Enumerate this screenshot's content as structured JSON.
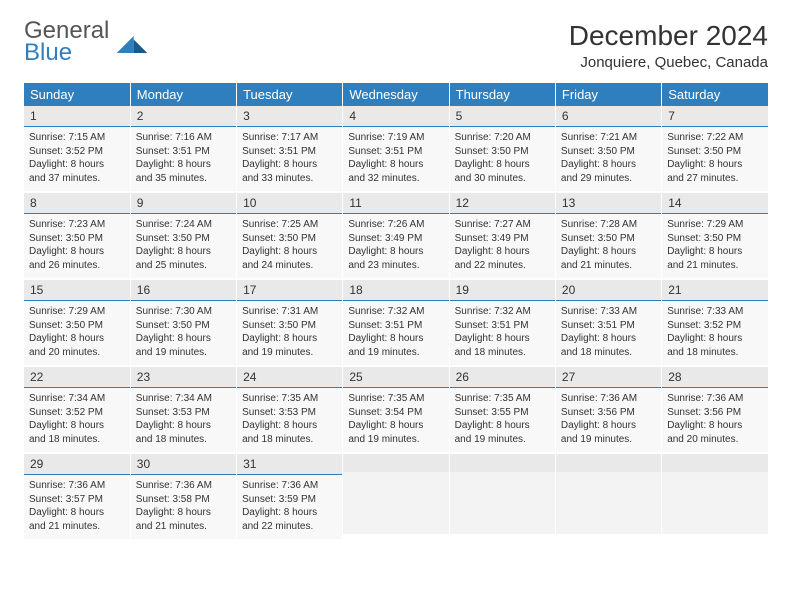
{
  "logo": {
    "text1": "General",
    "text2": "Blue",
    "color1": "#555555",
    "color2": "#2f7fbf"
  },
  "title": "December 2024",
  "location": "Jonquiere, Quebec, Canada",
  "header_bg": "#2f7fbf",
  "header_text": "#ffffff",
  "daynum_bg": "#e9e9e9",
  "body_bg": "#f8f8f8",
  "divider": "#2f7fbf",
  "weekdays": [
    "Sunday",
    "Monday",
    "Tuesday",
    "Wednesday",
    "Thursday",
    "Friday",
    "Saturday"
  ],
  "cells": [
    {
      "n": "1",
      "sr": "Sunrise: 7:15 AM",
      "ss": "Sunset: 3:52 PM",
      "d1": "Daylight: 8 hours",
      "d2": "and 37 minutes."
    },
    {
      "n": "2",
      "sr": "Sunrise: 7:16 AM",
      "ss": "Sunset: 3:51 PM",
      "d1": "Daylight: 8 hours",
      "d2": "and 35 minutes."
    },
    {
      "n": "3",
      "sr": "Sunrise: 7:17 AM",
      "ss": "Sunset: 3:51 PM",
      "d1": "Daylight: 8 hours",
      "d2": "and 33 minutes."
    },
    {
      "n": "4",
      "sr": "Sunrise: 7:19 AM",
      "ss": "Sunset: 3:51 PM",
      "d1": "Daylight: 8 hours",
      "d2": "and 32 minutes."
    },
    {
      "n": "5",
      "sr": "Sunrise: 7:20 AM",
      "ss": "Sunset: 3:50 PM",
      "d1": "Daylight: 8 hours",
      "d2": "and 30 minutes."
    },
    {
      "n": "6",
      "sr": "Sunrise: 7:21 AM",
      "ss": "Sunset: 3:50 PM",
      "d1": "Daylight: 8 hours",
      "d2": "and 29 minutes."
    },
    {
      "n": "7",
      "sr": "Sunrise: 7:22 AM",
      "ss": "Sunset: 3:50 PM",
      "d1": "Daylight: 8 hours",
      "d2": "and 27 minutes."
    },
    {
      "n": "8",
      "sr": "Sunrise: 7:23 AM",
      "ss": "Sunset: 3:50 PM",
      "d1": "Daylight: 8 hours",
      "d2": "and 26 minutes."
    },
    {
      "n": "9",
      "sr": "Sunrise: 7:24 AM",
      "ss": "Sunset: 3:50 PM",
      "d1": "Daylight: 8 hours",
      "d2": "and 25 minutes."
    },
    {
      "n": "10",
      "sr": "Sunrise: 7:25 AM",
      "ss": "Sunset: 3:50 PM",
      "d1": "Daylight: 8 hours",
      "d2": "and 24 minutes."
    },
    {
      "n": "11",
      "sr": "Sunrise: 7:26 AM",
      "ss": "Sunset: 3:49 PM",
      "d1": "Daylight: 8 hours",
      "d2": "and 23 minutes."
    },
    {
      "n": "12",
      "sr": "Sunrise: 7:27 AM",
      "ss": "Sunset: 3:49 PM",
      "d1": "Daylight: 8 hours",
      "d2": "and 22 minutes."
    },
    {
      "n": "13",
      "sr": "Sunrise: 7:28 AM",
      "ss": "Sunset: 3:50 PM",
      "d1": "Daylight: 8 hours",
      "d2": "and 21 minutes."
    },
    {
      "n": "14",
      "sr": "Sunrise: 7:29 AM",
      "ss": "Sunset: 3:50 PM",
      "d1": "Daylight: 8 hours",
      "d2": "and 21 minutes."
    },
    {
      "n": "15",
      "sr": "Sunrise: 7:29 AM",
      "ss": "Sunset: 3:50 PM",
      "d1": "Daylight: 8 hours",
      "d2": "and 20 minutes."
    },
    {
      "n": "16",
      "sr": "Sunrise: 7:30 AM",
      "ss": "Sunset: 3:50 PM",
      "d1": "Daylight: 8 hours",
      "d2": "and 19 minutes."
    },
    {
      "n": "17",
      "sr": "Sunrise: 7:31 AM",
      "ss": "Sunset: 3:50 PM",
      "d1": "Daylight: 8 hours",
      "d2": "and 19 minutes."
    },
    {
      "n": "18",
      "sr": "Sunrise: 7:32 AM",
      "ss": "Sunset: 3:51 PM",
      "d1": "Daylight: 8 hours",
      "d2": "and 19 minutes."
    },
    {
      "n": "19",
      "sr": "Sunrise: 7:32 AM",
      "ss": "Sunset: 3:51 PM",
      "d1": "Daylight: 8 hours",
      "d2": "and 18 minutes."
    },
    {
      "n": "20",
      "sr": "Sunrise: 7:33 AM",
      "ss": "Sunset: 3:51 PM",
      "d1": "Daylight: 8 hours",
      "d2": "and 18 minutes."
    },
    {
      "n": "21",
      "sr": "Sunrise: 7:33 AM",
      "ss": "Sunset: 3:52 PM",
      "d1": "Daylight: 8 hours",
      "d2": "and 18 minutes."
    },
    {
      "n": "22",
      "sr": "Sunrise: 7:34 AM",
      "ss": "Sunset: 3:52 PM",
      "d1": "Daylight: 8 hours",
      "d2": "and 18 minutes."
    },
    {
      "n": "23",
      "sr": "Sunrise: 7:34 AM",
      "ss": "Sunset: 3:53 PM",
      "d1": "Daylight: 8 hours",
      "d2": "and 18 minutes."
    },
    {
      "n": "24",
      "sr": "Sunrise: 7:35 AM",
      "ss": "Sunset: 3:53 PM",
      "d1": "Daylight: 8 hours",
      "d2": "and 18 minutes."
    },
    {
      "n": "25",
      "sr": "Sunrise: 7:35 AM",
      "ss": "Sunset: 3:54 PM",
      "d1": "Daylight: 8 hours",
      "d2": "and 19 minutes."
    },
    {
      "n": "26",
      "sr": "Sunrise: 7:35 AM",
      "ss": "Sunset: 3:55 PM",
      "d1": "Daylight: 8 hours",
      "d2": "and 19 minutes."
    },
    {
      "n": "27",
      "sr": "Sunrise: 7:36 AM",
      "ss": "Sunset: 3:56 PM",
      "d1": "Daylight: 8 hours",
      "d2": "and 19 minutes."
    },
    {
      "n": "28",
      "sr": "Sunrise: 7:36 AM",
      "ss": "Sunset: 3:56 PM",
      "d1": "Daylight: 8 hours",
      "d2": "and 20 minutes."
    },
    {
      "n": "29",
      "sr": "Sunrise: 7:36 AM",
      "ss": "Sunset: 3:57 PM",
      "d1": "Daylight: 8 hours",
      "d2": "and 21 minutes."
    },
    {
      "n": "30",
      "sr": "Sunrise: 7:36 AM",
      "ss": "Sunset: 3:58 PM",
      "d1": "Daylight: 8 hours",
      "d2": "and 21 minutes."
    },
    {
      "n": "31",
      "sr": "Sunrise: 7:36 AM",
      "ss": "Sunset: 3:59 PM",
      "d1": "Daylight: 8 hours",
      "d2": "and 22 minutes."
    },
    {
      "empty": true
    },
    {
      "empty": true
    },
    {
      "empty": true
    },
    {
      "empty": true
    }
  ]
}
